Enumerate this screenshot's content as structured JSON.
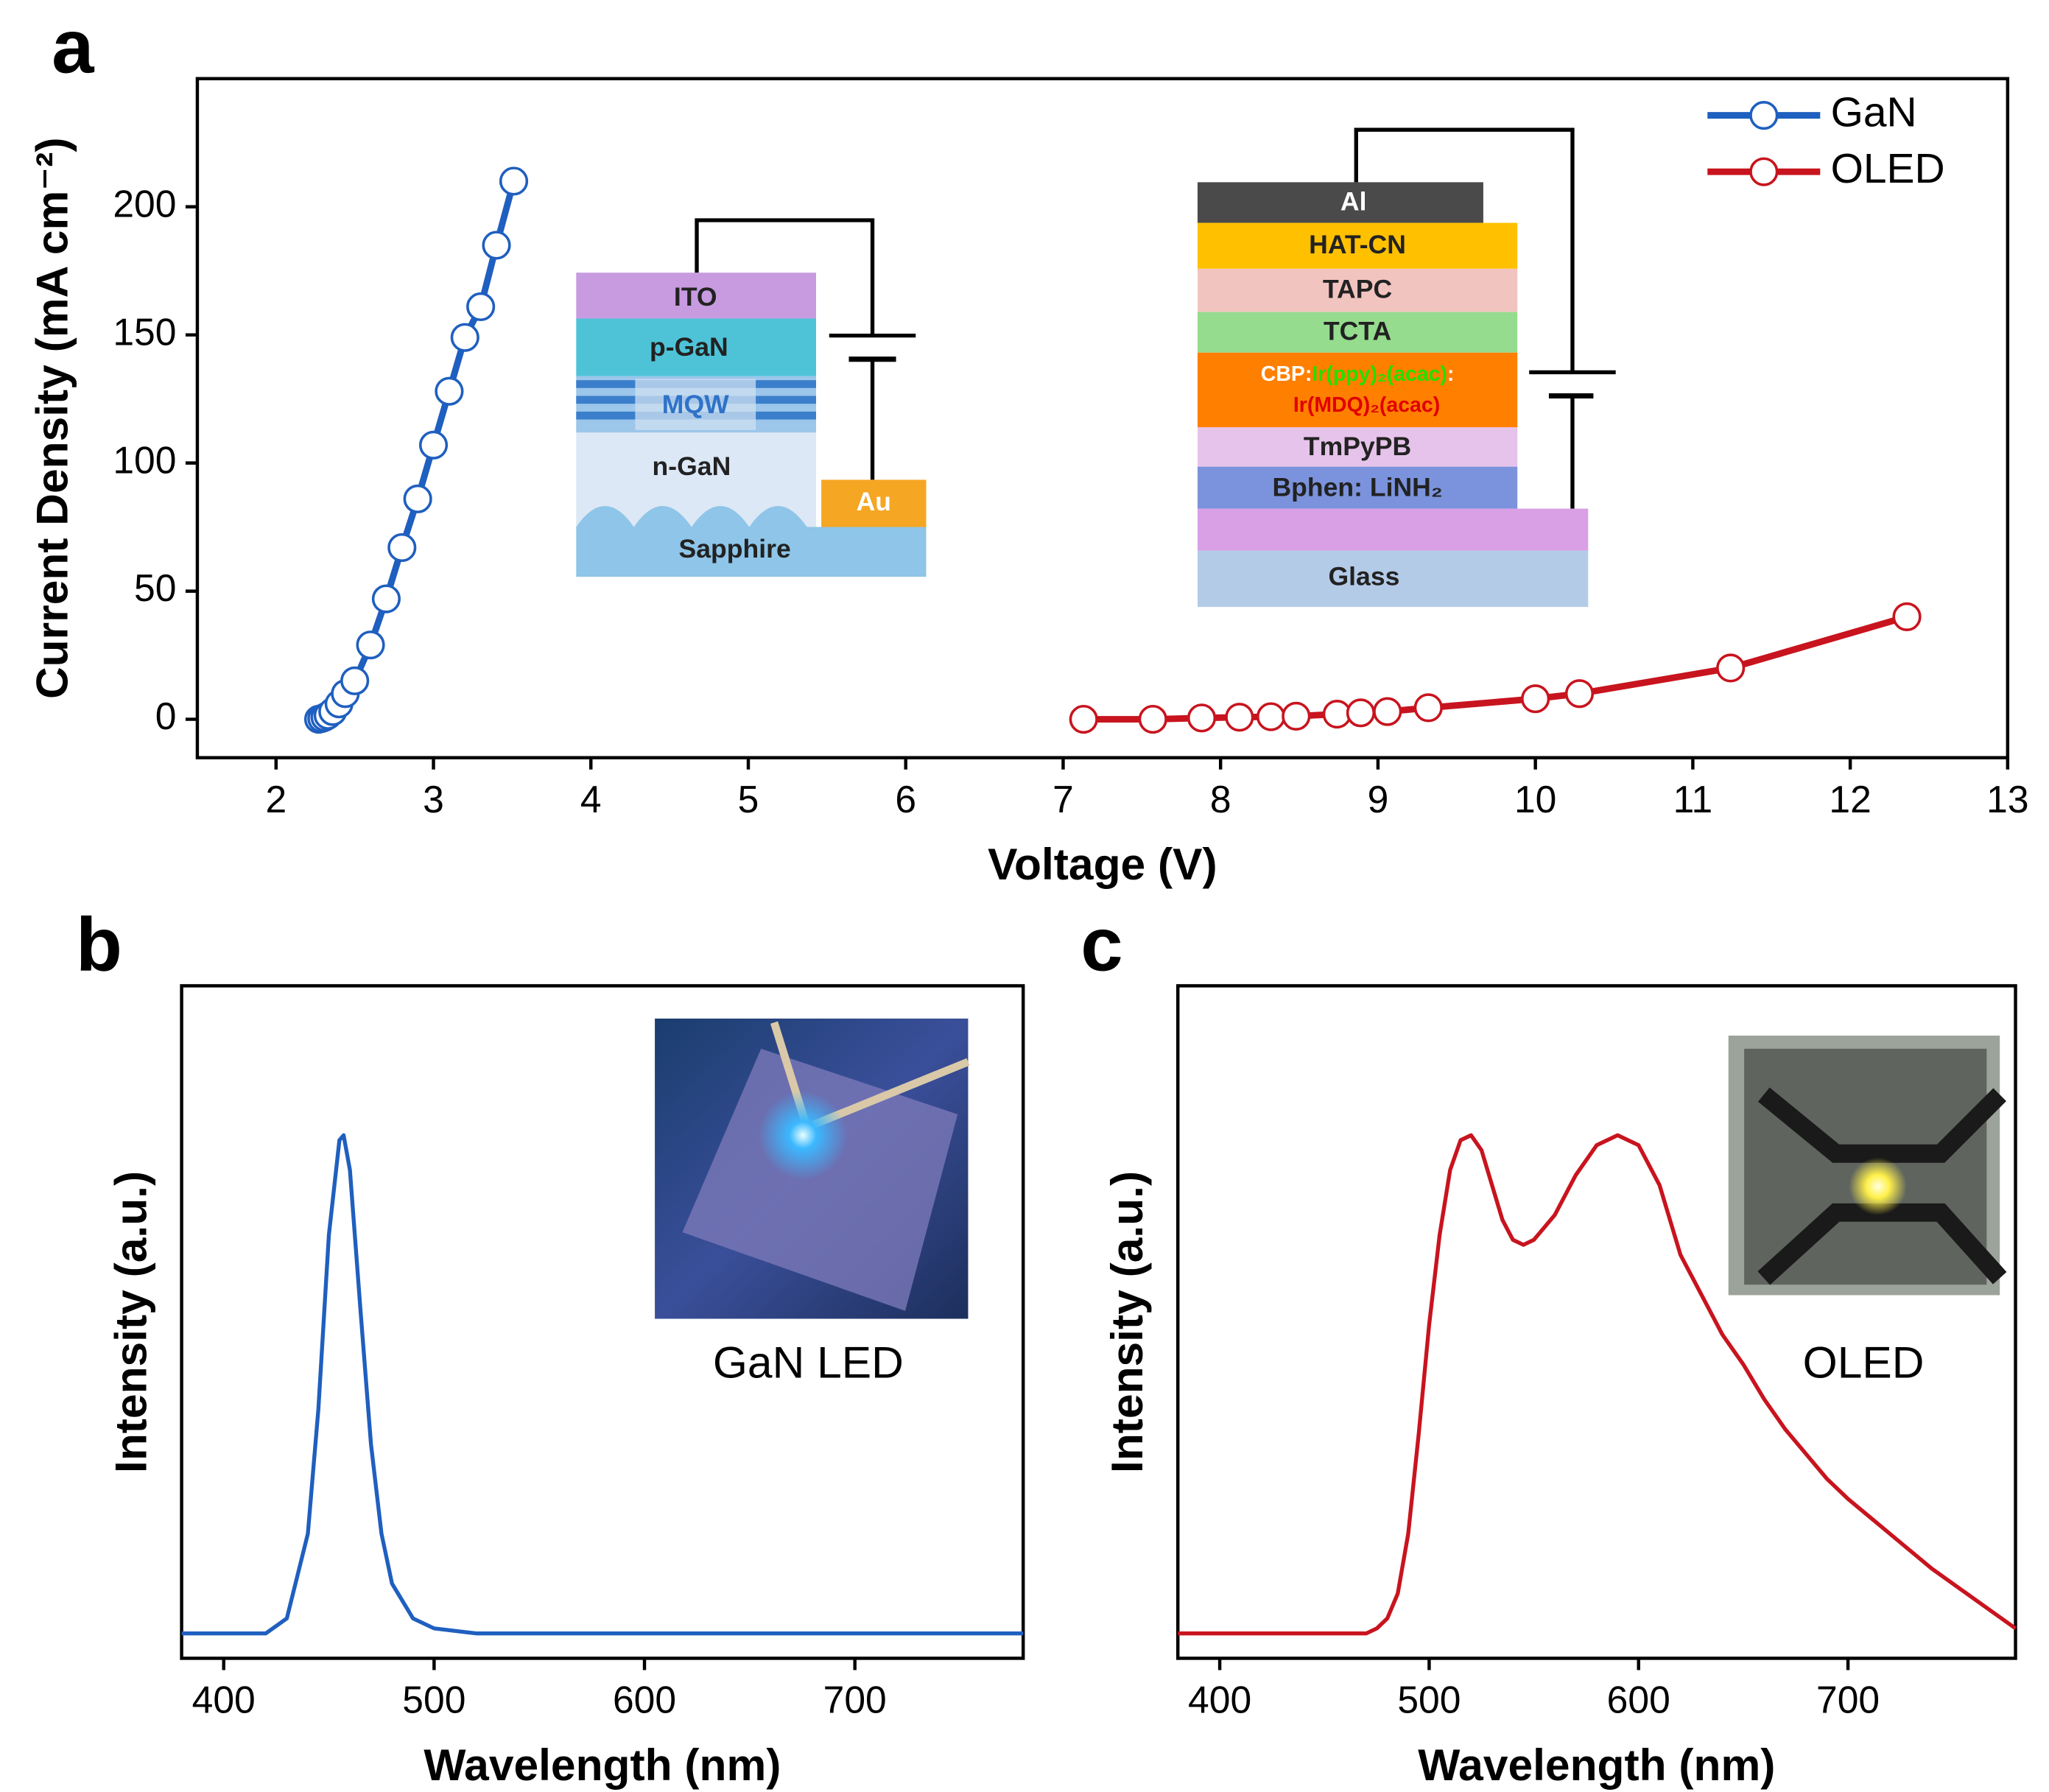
{
  "chart_data": [
    {
      "type": "line",
      "panel_label": "a",
      "x_label": "Voltage (V)",
      "y_label": "Current Density (mA cm⁻²)",
      "xlim": [
        1.5,
        13
      ],
      "ylim": [
        -15,
        250
      ],
      "xticks": [
        2,
        3,
        4,
        5,
        6,
        7,
        8,
        9,
        10,
        11,
        12,
        13
      ],
      "yticks": [
        0,
        50,
        100,
        150,
        200
      ],
      "legend": "top-right",
      "markers": "open-circle",
      "series": [
        {
          "name": "GaN",
          "color": "#1f5fbf",
          "x": [
            2.27,
            2.29,
            2.31,
            2.33,
            2.36,
            2.4,
            2.44,
            2.5,
            2.6,
            2.7,
            2.8,
            2.9,
            3.0,
            3.1,
            3.2,
            3.3,
            3.4,
            3.51
          ],
          "values": [
            0,
            0.3,
            0.8,
            1.5,
            3,
            6,
            10,
            15,
            29,
            47,
            67,
            86,
            107,
            128,
            149,
            161,
            185,
            210
          ]
        },
        {
          "name": "OLED",
          "color": "#c8141e",
          "x": [
            7.13,
            7.57,
            7.88,
            8.12,
            8.32,
            8.48,
            8.74,
            8.89,
            9.06,
            9.32,
            10.0,
            10.28,
            11.24,
            12.36
          ],
          "values": [
            0,
            0,
            0.5,
            0.8,
            1,
            1.2,
            2,
            2.5,
            3,
            4.5,
            8,
            10,
            20,
            40
          ]
        }
      ],
      "gan_layers": [
        "ITO",
        "p-GaN",
        "MQW",
        "n-GaN",
        "Sapphire",
        "Au"
      ],
      "oled_layers": [
        "Al",
        "HAT-CN",
        "TAPC",
        "TCTA",
        "TmPyPB",
        "Bphen: LiNH₂",
        "Glass"
      ],
      "oled_emitter": [
        "CBP:",
        "Ir(ppy)₂(acac)",
        ":",
        "Ir(MDQ)₂(acac)"
      ]
    },
    {
      "type": "line",
      "panel_label": "b",
      "x_label": "Wavelength (nm)",
      "y_label": "Intensity (a.u.)",
      "xlim": [
        380,
        780
      ],
      "ylim": [
        -0.05,
        1.3
      ],
      "xticks": [
        400,
        500,
        600,
        700
      ],
      "color": "#1f5fbf",
      "inset_label": "GaN LED",
      "x": [
        380,
        400,
        420,
        430,
        440,
        445,
        450,
        455,
        457,
        460,
        465,
        470,
        475,
        480,
        490,
        500,
        520,
        560,
        600,
        650,
        700,
        740,
        780
      ],
      "values": [
        0,
        0,
        0,
        0.03,
        0.2,
        0.45,
        0.8,
        0.99,
        1.0,
        0.93,
        0.65,
        0.38,
        0.2,
        0.1,
        0.03,
        0.01,
        0,
        0,
        0,
        0,
        0,
        0,
        0
      ]
    },
    {
      "type": "line",
      "panel_label": "c",
      "x_label": "Wavelength (nm)",
      "y_label": "Intensity (a.u.)",
      "xlim": [
        380,
        780
      ],
      "ylim": [
        -0.05,
        1.3
      ],
      "xticks": [
        400,
        500,
        600,
        700
      ],
      "color": "#c8141e",
      "inset_label": "OLED",
      "x": [
        380,
        420,
        470,
        475,
        480,
        485,
        490,
        495,
        500,
        505,
        510,
        515,
        520,
        525,
        530,
        535,
        540,
        545,
        550,
        560,
        570,
        580,
        590,
        600,
        610,
        620,
        630,
        640,
        650,
        660,
        670,
        680,
        690,
        700,
        720,
        740,
        760,
        780
      ],
      "values": [
        0,
        0,
        0,
        0.01,
        0.03,
        0.08,
        0.2,
        0.4,
        0.62,
        0.8,
        0.93,
        0.99,
        1.0,
        0.97,
        0.9,
        0.83,
        0.79,
        0.78,
        0.79,
        0.84,
        0.92,
        0.98,
        1.0,
        0.98,
        0.9,
        0.76,
        0.68,
        0.6,
        0.54,
        0.47,
        0.41,
        0.36,
        0.31,
        0.27,
        0.2,
        0.13,
        0.07,
        0.01
      ]
    }
  ]
}
